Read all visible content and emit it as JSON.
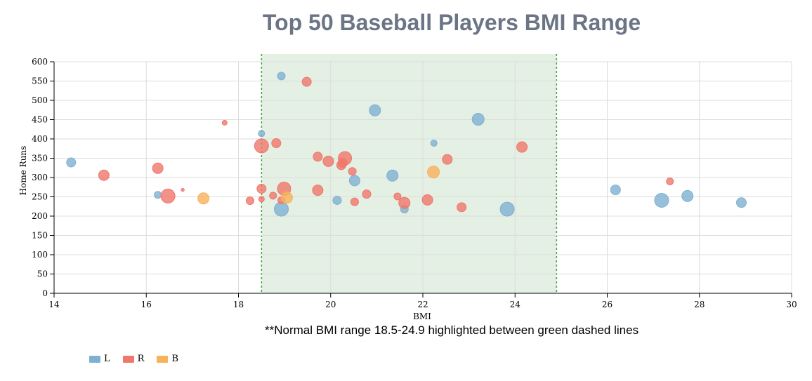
{
  "chart_data": {
    "type": "scatter",
    "title": "Top 50 Baseball Players BMI Range",
    "xlabel": "BMI",
    "ylabel": "Home Runs",
    "xlim": [
      14,
      30
    ],
    "ylim": [
      0,
      600
    ],
    "x_ticks": [
      "14",
      "16",
      "18",
      "20",
      "22",
      "24",
      "26",
      "28",
      "30"
    ],
    "y_ticks": [
      "0",
      "50",
      "100",
      "150",
      "200",
      "250",
      "300",
      "350",
      "400",
      "450",
      "500",
      "550",
      "600"
    ],
    "grid": true,
    "highlight_range": [
      18.5,
      24.9
    ],
    "legend_position": "bottom-left",
    "footnote": "**Normal BMI range 18.5-24.9 highlighted between green dashed lines",
    "colors": {
      "L": "#7fb0d2",
      "R": "#f0776c",
      "B": "#f8b25b",
      "band": "#d9ead9",
      "dashed": "#4aa546"
    },
    "series": [
      {
        "name": "L",
        "points": [
          {
            "x": 14.37,
            "y": 339,
            "size": 6.5
          },
          {
            "x": 16.25,
            "y": 255,
            "size": 5
          },
          {
            "x": 18.5,
            "y": 414,
            "size": 4.5
          },
          {
            "x": 18.93,
            "y": 563,
            "size": 5.5
          },
          {
            "x": 18.93,
            "y": 218,
            "size": 10
          },
          {
            "x": 20.14,
            "y": 241,
            "size": 6
          },
          {
            "x": 20.52,
            "y": 292,
            "size": 7.5
          },
          {
            "x": 20.96,
            "y": 474,
            "size": 8
          },
          {
            "x": 21.34,
            "y": 305,
            "size": 8
          },
          {
            "x": 21.6,
            "y": 218,
            "size": 5.5
          },
          {
            "x": 22.24,
            "y": 389,
            "size": 4.5
          },
          {
            "x": 23.2,
            "y": 451,
            "size": 8.5
          },
          {
            "x": 23.83,
            "y": 218,
            "size": 10
          },
          {
            "x": 26.18,
            "y": 268,
            "size": 7
          },
          {
            "x": 27.18,
            "y": 241,
            "size": 10
          },
          {
            "x": 27.74,
            "y": 252,
            "size": 8
          },
          {
            "x": 28.91,
            "y": 235,
            "size": 7
          }
        ]
      },
      {
        "name": "R",
        "points": [
          {
            "x": 15.08,
            "y": 306,
            "size": 7.5
          },
          {
            "x": 16.25,
            "y": 324,
            "size": 7.5
          },
          {
            "x": 16.47,
            "y": 252,
            "size": 10
          },
          {
            "x": 16.79,
            "y": 268,
            "size": 2.2
          },
          {
            "x": 17.7,
            "y": 442,
            "size": 3.5
          },
          {
            "x": 18.25,
            "y": 240,
            "size": 5.5
          },
          {
            "x": 18.5,
            "y": 382,
            "size": 10
          },
          {
            "x": 18.5,
            "y": 271,
            "size": 6.5
          },
          {
            "x": 18.5,
            "y": 244,
            "size": 4
          },
          {
            "x": 18.75,
            "y": 253,
            "size": 5
          },
          {
            "x": 18.82,
            "y": 389,
            "size": 6.5
          },
          {
            "x": 18.93,
            "y": 241,
            "size": 5
          },
          {
            "x": 18.99,
            "y": 271,
            "size": 9.5
          },
          {
            "x": 19.48,
            "y": 548,
            "size": 6.5
          },
          {
            "x": 19.72,
            "y": 354,
            "size": 6.5
          },
          {
            "x": 19.72,
            "y": 267,
            "size": 7.5
          },
          {
            "x": 19.95,
            "y": 342,
            "size": 7.5
          },
          {
            "x": 20.23,
            "y": 332,
            "size": 6.5
          },
          {
            "x": 20.26,
            "y": 338,
            "size": 6.5
          },
          {
            "x": 20.31,
            "y": 350,
            "size": 9.5
          },
          {
            "x": 20.47,
            "y": 316,
            "size": 5.5
          },
          {
            "x": 20.52,
            "y": 237,
            "size": 5.5
          },
          {
            "x": 20.78,
            "y": 257,
            "size": 6
          },
          {
            "x": 21.45,
            "y": 251,
            "size": 5
          },
          {
            "x": 21.6,
            "y": 234,
            "size": 8
          },
          {
            "x": 22.1,
            "y": 242,
            "size": 7.5
          },
          {
            "x": 22.53,
            "y": 347,
            "size": 7
          },
          {
            "x": 22.84,
            "y": 223,
            "size": 6.5
          },
          {
            "x": 24.15,
            "y": 379,
            "size": 7.5
          },
          {
            "x": 27.36,
            "y": 290,
            "size": 5
          }
        ]
      },
      {
        "name": "B",
        "points": [
          {
            "x": 17.24,
            "y": 246,
            "size": 8
          },
          {
            "x": 19.05,
            "y": 248,
            "size": 8
          },
          {
            "x": 22.23,
            "y": 314,
            "size": 8.5
          }
        ]
      }
    ]
  }
}
